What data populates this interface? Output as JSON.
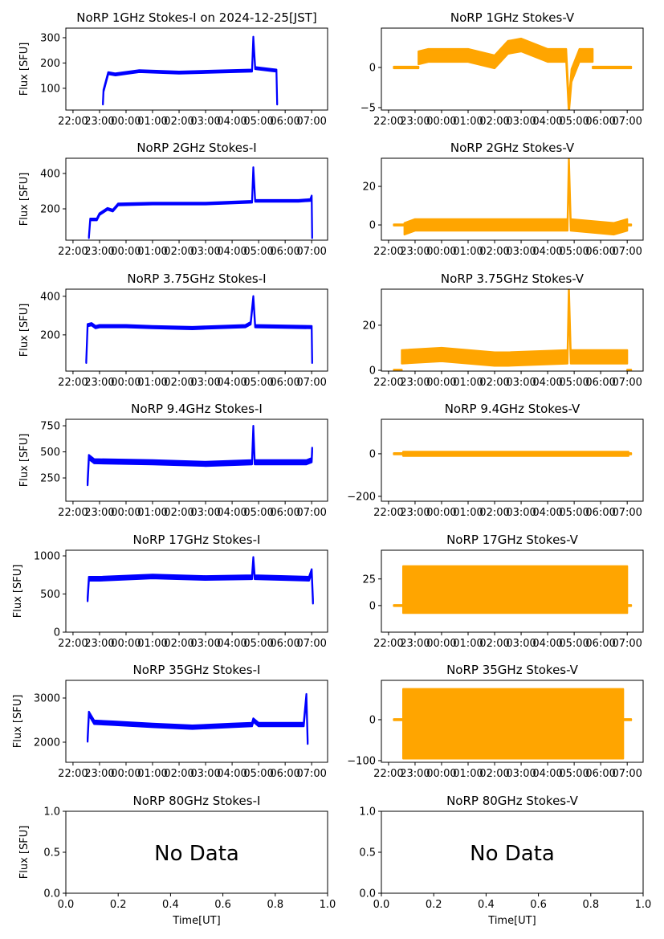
{
  "chart_data": {
    "type": "line",
    "time_ticks": [
      "22:00",
      "23:00",
      "00:00",
      "01:00",
      "02:00",
      "03:00",
      "04:00",
      "05:00",
      "06:00",
      "07:00"
    ],
    "x_units": "hours since 22:00 UT",
    "xlim": [
      -0.27,
      9.6
    ],
    "ylabel": "Flux [SFU]",
    "xlabel": "Time[UT]",
    "colors": {
      "stokes_i": "#0000ff",
      "stokes_v": "#ffa500"
    },
    "panels": [
      {
        "title": "NoRP 1GHz Stokes-I on 2024-12-25[JST]",
        "stokes": "I",
        "ylim": [
          14,
          338
        ],
        "yticks": [
          100,
          200,
          300
        ],
        "series": [
          {
            "spread": 4,
            "points": [
              [
                1.13,
                40
              ],
              [
                1.15,
                90
              ],
              [
                1.33,
                160
              ],
              [
                1.6,
                155
              ],
              [
                2.5,
                168
              ],
              [
                4,
                162
              ],
              [
                6.75,
                170
              ],
              [
                6.8,
                300
              ],
              [
                6.87,
                180
              ],
              [
                7.5,
                172
              ],
              [
                7.67,
                170
              ],
              [
                7.7,
                40
              ]
            ]
          }
        ]
      },
      {
        "title": "NoRP 1GHz Stokes-V",
        "stokes": "V",
        "ylim": [
          -5.3,
          4.9
        ],
        "yticks": [
          -5,
          0
        ],
        "series": [
          {
            "spread": 0.1,
            "points": [
              [
                0.2,
                0
              ],
              [
                1.13,
                0
              ]
            ]
          },
          {
            "spread": 0.8,
            "points": [
              [
                1.13,
                1.2
              ],
              [
                1.5,
                1.5
              ],
              [
                3,
                1.5
              ],
              [
                4,
                0.7
              ],
              [
                4.5,
                2.5
              ],
              [
                5,
                2.8
              ],
              [
                6,
                1.5
              ],
              [
                6.7,
                1.5
              ],
              [
                6.8,
                -5
              ],
              [
                6.9,
                -1
              ],
              [
                7.2,
                1.5
              ],
              [
                7.7,
                1.5
              ]
            ]
          },
          {
            "spread": 0.1,
            "points": [
              [
                7.7,
                0
              ],
              [
                9.15,
                0
              ]
            ]
          }
        ]
      },
      {
        "title": "NoRP 2GHz Stokes-I",
        "stokes": "I",
        "ylim": [
          23,
          486
        ],
        "yticks": [
          200,
          400
        ],
        "series": [
          {
            "spread": 5,
            "points": [
              [
                0.6,
                40
              ],
              [
                0.65,
                140
              ],
              [
                0.9,
                140
              ],
              [
                1.0,
                170
              ],
              [
                1.3,
                200
              ],
              [
                1.5,
                190
              ],
              [
                1.7,
                225
              ],
              [
                3,
                230
              ],
              [
                5,
                230
              ],
              [
                6.75,
                240
              ],
              [
                6.8,
                430
              ],
              [
                6.87,
                245
              ],
              [
                8.5,
                245
              ],
              [
                8.95,
                250
              ],
              [
                9.0,
                270
              ],
              [
                9.02,
                40
              ]
            ]
          }
        ]
      },
      {
        "title": "NoRP 2GHz Stokes-V",
        "stokes": "V",
        "ylim": [
          -7.9,
          34.6
        ],
        "yticks": [
          0,
          20
        ],
        "series": [
          {
            "spread": 0.3,
            "points": [
              [
                0.2,
                0
              ],
              [
                0.6,
                0
              ]
            ]
          },
          {
            "spread": 3,
            "points": [
              [
                0.6,
                -2
              ],
              [
                1,
                0
              ],
              [
                3,
                0
              ],
              [
                5,
                0
              ],
              [
                6.75,
                0
              ],
              [
                6.8,
                33
              ],
              [
                6.87,
                0
              ],
              [
                8.5,
                -2
              ],
              [
                9.0,
                0
              ]
            ]
          },
          {
            "spread": 0.3,
            "points": [
              [
                9.0,
                0
              ],
              [
                9.15,
                0
              ]
            ]
          }
        ]
      },
      {
        "title": "NoRP 3.75GHz Stokes-I",
        "stokes": "I",
        "ylim": [
          12,
          437
        ],
        "yticks": [
          200,
          400
        ],
        "series": [
          {
            "spread": 6,
            "points": [
              [
                0.5,
                60
              ],
              [
                0.55,
                250
              ],
              [
                0.7,
                255
              ],
              [
                0.85,
                240
              ],
              [
                1.0,
                245
              ],
              [
                2,
                245
              ],
              [
                3,
                240
              ],
              [
                4.5,
                235
              ],
              [
                5,
                238
              ],
              [
                6.5,
                245
              ],
              [
                6.7,
                260
              ],
              [
                6.8,
                395
              ],
              [
                6.87,
                245
              ],
              [
                9.0,
                240
              ],
              [
                9.02,
                60
              ]
            ]
          }
        ]
      },
      {
        "title": "NoRP 3.75GHz Stokes-V",
        "stokes": "V",
        "ylim": [
          -0.35,
          36
        ],
        "yticks": [
          0,
          20
        ],
        "series": [
          {
            "spread": 0.3,
            "points": [
              [
                0.2,
                0
              ],
              [
                0.5,
                0
              ]
            ]
          },
          {
            "spread": 3,
            "points": [
              [
                0.5,
                6
              ],
              [
                2,
                7
              ],
              [
                4,
                5
              ],
              [
                4.5,
                5
              ],
              [
                6.75,
                6
              ],
              [
                6.8,
                35
              ],
              [
                6.87,
                6
              ],
              [
                9.0,
                6
              ]
            ]
          },
          {
            "spread": 0.3,
            "points": [
              [
                9.0,
                0
              ],
              [
                9.15,
                0
              ]
            ]
          }
        ]
      },
      {
        "title": "NoRP 9.4GHz Stokes-I",
        "stokes": "I",
        "ylim": [
          27,
          812
        ],
        "yticks": [
          250,
          500,
          750
        ],
        "series": [
          {
            "spread": 20,
            "points": [
              [
                0.55,
                200
              ],
              [
                0.6,
                450
              ],
              [
                0.8,
                410
              ],
              [
                3,
                400
              ],
              [
                5,
                385
              ],
              [
                6.75,
                400
              ],
              [
                6.8,
                730
              ],
              [
                6.85,
                400
              ],
              [
                8.8,
                400
              ],
              [
                9.0,
                420
              ],
              [
                9.02,
                520
              ]
            ]
          }
        ]
      },
      {
        "title": "NoRP 9.4GHz Stokes-V",
        "stokes": "V",
        "ylim": [
          -223,
          162
        ],
        "yticks": [
          -200,
          0
        ],
        "series": [
          {
            "spread": 3,
            "points": [
              [
                0.2,
                0
              ],
              [
                0.55,
                0
              ]
            ]
          },
          {
            "spread": 10,
            "points": [
              [
                0.55,
                0
              ],
              [
                9.05,
                0
              ]
            ]
          },
          {
            "spread": 3,
            "points": [
              [
                9.05,
                0
              ],
              [
                9.15,
                0
              ]
            ]
          }
        ]
      },
      {
        "title": "NoRP 17GHz Stokes-I",
        "stokes": "I",
        "ylim": [
          0,
          1074
        ],
        "yticks": [
          0,
          500,
          1000
        ],
        "series": [
          {
            "spread": 25,
            "points": [
              [
                0.55,
                430
              ],
              [
                0.6,
                700
              ],
              [
                1,
                700
              ],
              [
                3,
                730
              ],
              [
                5,
                710
              ],
              [
                6.75,
                720
              ],
              [
                6.8,
                960
              ],
              [
                6.85,
                720
              ],
              [
                8.9,
                700
              ],
              [
                9.0,
                800
              ],
              [
                9.05,
                400
              ]
            ]
          }
        ]
      },
      {
        "title": "NoRP 17GHz Stokes-V",
        "stokes": "V",
        "ylim": [
          -25,
          52
        ],
        "yticks": [
          0,
          25
        ],
        "series": [
          {
            "spread": 0.5,
            "points": [
              [
                0.2,
                0
              ],
              [
                0.55,
                0
              ]
            ]
          },
          {
            "spread": 22,
            "points": [
              [
                0.55,
                15
              ],
              [
                9.0,
                15
              ]
            ]
          },
          {
            "spread": 0.5,
            "points": [
              [
                9.0,
                0
              ],
              [
                9.15,
                0
              ]
            ]
          }
        ]
      },
      {
        "title": "NoRP 35GHz Stokes-I",
        "stokes": "I",
        "ylim": [
          1545,
          3400
        ],
        "yticks": [
          2000,
          3000
        ],
        "series": [
          {
            "spread": 40,
            "points": [
              [
                0.55,
                2050
              ],
              [
                0.6,
                2650
              ],
              [
                0.8,
                2450
              ],
              [
                1.5,
                2430
              ],
              [
                3,
                2380
              ],
              [
                4.5,
                2340
              ],
              [
                6,
                2380
              ],
              [
                6.75,
                2400
              ],
              [
                6.8,
                2500
              ],
              [
                7,
                2400
              ],
              [
                8.7,
                2400
              ],
              [
                8.8,
                3050
              ],
              [
                8.85,
                2000
              ]
            ]
          }
        ]
      },
      {
        "title": "NoRP 35GHz Stokes-V",
        "stokes": "V",
        "ylim": [
          -104,
          96
        ],
        "yticks": [
          -100,
          0
        ],
        "series": [
          {
            "spread": 1.5,
            "points": [
              [
                0.2,
                0
              ],
              [
                0.55,
                0
              ]
            ]
          },
          {
            "spread": 85,
            "points": [
              [
                0.55,
                -10
              ],
              [
                8.85,
                -10
              ]
            ]
          },
          {
            "spread": 1.5,
            "points": [
              [
                8.85,
                0
              ],
              [
                9.15,
                0
              ]
            ]
          }
        ]
      },
      {
        "title": "NoRP 80GHz Stokes-I",
        "stokes": "I",
        "empty": true,
        "message": "No Data",
        "ylim": [
          0,
          1
        ],
        "yticks": [
          "0.0",
          "0.5",
          "1.0"
        ],
        "xticks": [
          "0.0",
          "0.2",
          "0.4",
          "0.6",
          "0.8",
          "1.0"
        ],
        "series": []
      },
      {
        "title": "NoRP 80GHz Stokes-V",
        "stokes": "V",
        "empty": true,
        "message": "No Data",
        "ylim": [
          0,
          1
        ],
        "yticks": [
          "0.0",
          "0.5",
          "1.0"
        ],
        "xticks": [
          "0.0",
          "0.2",
          "0.4",
          "0.6",
          "0.8",
          "1.0"
        ],
        "series": []
      }
    ]
  }
}
